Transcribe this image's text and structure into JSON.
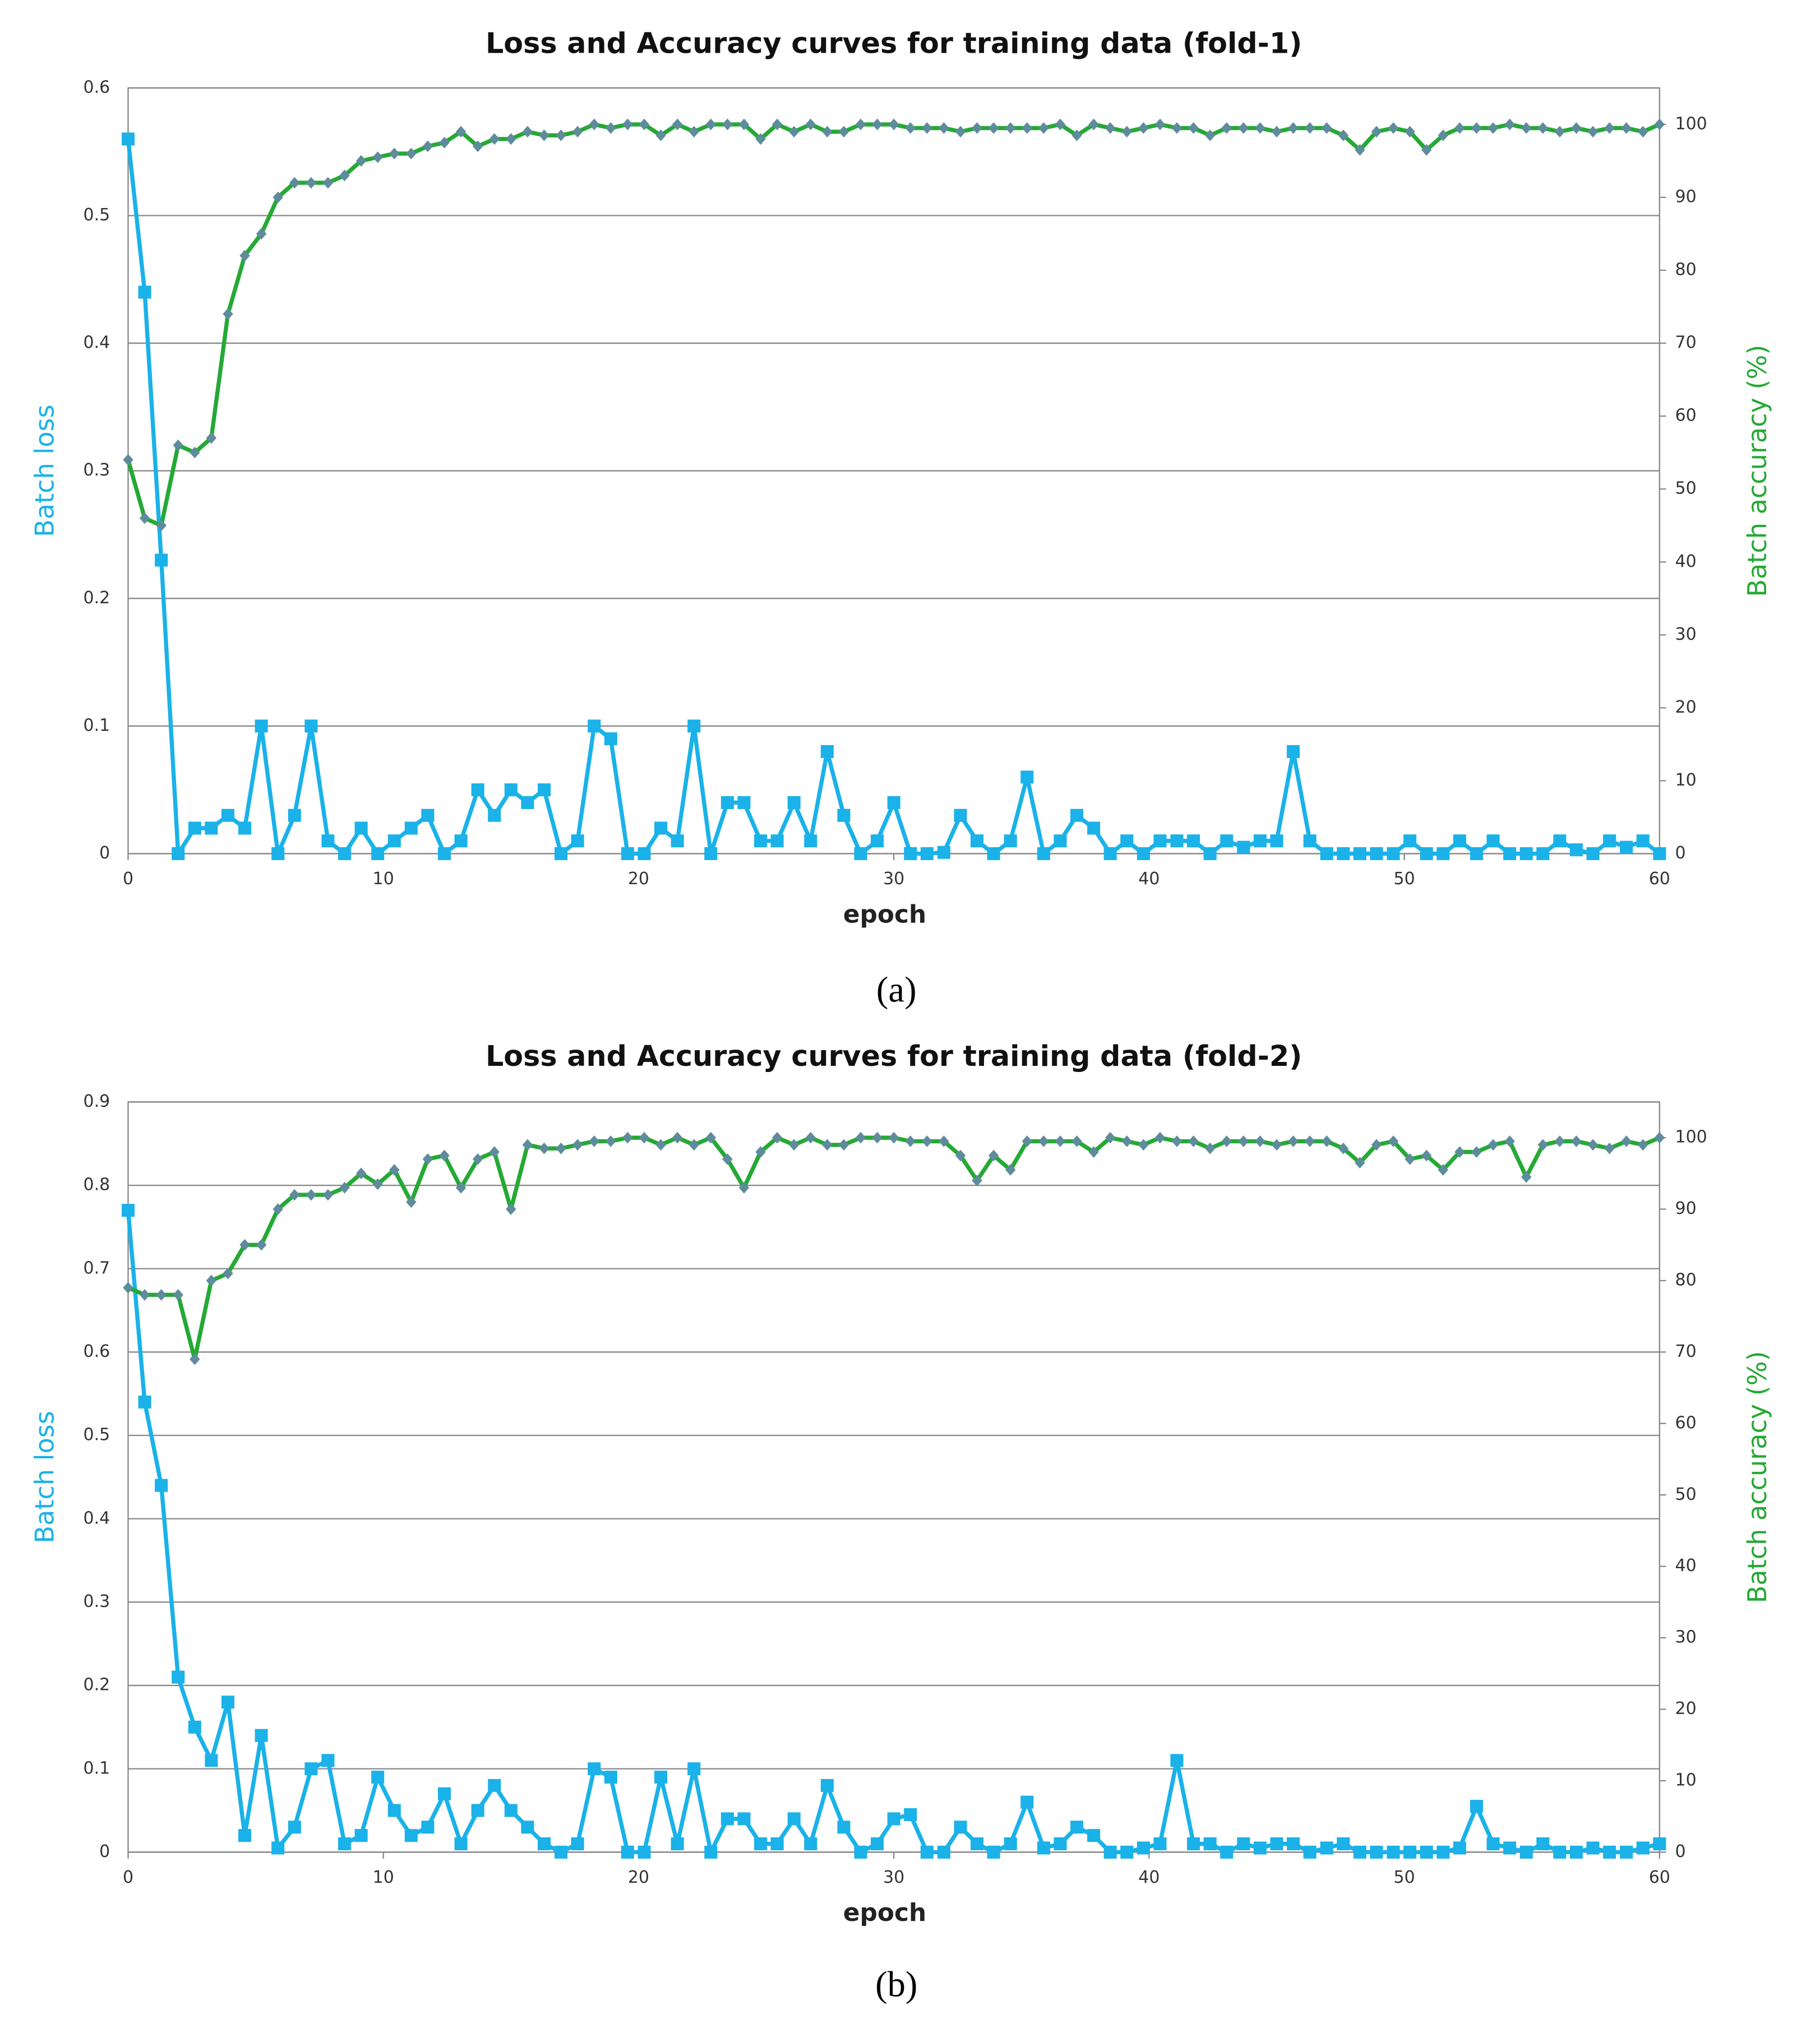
{
  "chart_data": [
    {
      "type": "line",
      "title": "Loss and Accuracy curves for training data (fold-1)",
      "caption": "(a)",
      "x_label": "epoch",
      "y_label": "Batch loss",
      "y2_label": "Batch accuracy (%)",
      "xlim": [
        0,
        60
      ],
      "xticks": [
        0,
        10,
        20,
        30,
        40,
        50,
        60
      ],
      "ylim": [
        0,
        0.6
      ],
      "yticks": [
        0,
        0.1,
        0.2,
        0.3,
        0.4,
        0.5,
        0.6
      ],
      "y2lim": [
        0,
        105
      ],
      "y2ticks": [
        0,
        10,
        20,
        30,
        40,
        50,
        60,
        70,
        80,
        90,
        100
      ],
      "grid": true,
      "x": [
        0,
        0.65,
        1.3,
        1.96,
        2.61,
        3.26,
        3.91,
        4.57,
        5.22,
        5.87,
        6.52,
        7.17,
        7.83,
        8.48,
        9.13,
        9.78,
        10.43,
        11.09,
        11.74,
        12.39,
        13.04,
        13.7,
        14.35,
        15,
        15.65,
        16.3,
        16.96,
        17.61,
        18.26,
        18.91,
        19.57,
        20.22,
        20.87,
        21.52,
        22.17,
        22.83,
        23.48,
        24.13,
        24.78,
        25.43,
        26.09,
        26.74,
        27.39,
        28.04,
        28.7,
        29.35,
        30,
        30.65,
        31.3,
        31.96,
        32.61,
        33.26,
        33.91,
        34.57,
        35.22,
        35.87,
        36.52,
        37.17,
        37.83,
        38.48,
        39.13,
        39.78,
        40.43,
        41.09,
        41.74,
        42.39,
        43.04,
        43.7,
        44.35,
        45,
        45.65,
        46.3,
        46.96,
        47.61,
        48.26,
        48.91,
        49.57,
        50.22,
        50.87,
        51.52,
        52.17,
        52.83,
        53.48,
        54.13,
        54.78,
        55.43,
        56.09,
        56.74,
        57.39,
        58.04,
        58.7,
        59.35,
        60
      ],
      "series": [
        {
          "axis": "y",
          "marker": "square",
          "color": "#1ab2e8",
          "values": [
            0.56,
            0.44,
            0.23,
            0,
            0.02,
            0.02,
            0.03,
            0.02,
            0.1,
            0,
            0.03,
            0.1,
            0.01,
            0,
            0.02,
            0,
            0.01,
            0.02,
            0.03,
            0,
            0.01,
            0.05,
            0.03,
            0.05,
            0.04,
            0.05,
            0,
            0.01,
            0.1,
            0.09,
            0,
            0,
            0.02,
            0.01,
            0.1,
            0,
            0.04,
            0.04,
            0.01,
            0.01,
            0.04,
            0.01,
            0.08,
            0.03,
            0,
            0.01,
            0.04,
            0,
            0,
            0.001,
            0.03,
            0.01,
            0,
            0.01,
            0.06,
            0,
            0.01,
            0.03,
            0.02,
            0,
            0.01,
            0,
            0.01,
            0.01,
            0.01,
            0,
            0.01,
            0.005,
            0.01,
            0.01,
            0.08,
            0.01,
            0,
            0,
            0,
            0,
            0,
            0.01,
            0,
            0,
            0.01,
            0,
            0.01,
            0,
            0,
            0,
            0.01,
            0.003,
            0,
            0.01,
            0.005,
            0.01,
            0
          ]
        },
        {
          "axis": "y2",
          "marker": "diamond",
          "color": "#25a935",
          "marker_color": "#5f8c9c",
          "values": [
            54,
            46,
            45,
            56,
            55,
            57,
            74,
            82,
            85,
            90,
            92,
            92,
            92,
            93,
            95,
            95.5,
            96,
            96,
            97,
            97.5,
            99,
            97,
            98,
            98,
            99,
            98.5,
            98.5,
            99,
            100,
            99.5,
            100,
            100,
            98.5,
            100,
            99,
            100,
            100,
            100,
            98,
            100,
            99,
            100,
            99,
            99,
            100,
            100,
            100,
            99.5,
            99.5,
            99.5,
            99,
            99.5,
            99.5,
            99.5,
            99.5,
            99.5,
            100,
            98.5,
            100,
            99.5,
            99,
            99.5,
            100,
            99.5,
            99.5,
            98.5,
            99.5,
            99.5,
            99.5,
            99,
            99.5,
            99.5,
            99.5,
            98.5,
            96.5,
            99,
            99.5,
            99,
            96.5,
            98.5,
            99.5,
            99.5,
            99.5,
            100,
            99.5,
            99.5,
            99,
            99.5,
            99,
            99.5,
            99.5,
            99,
            100
          ]
        }
      ]
    },
    {
      "type": "line",
      "title": "Loss and Accuracy curves for training data (fold-2)",
      "caption": "(b)",
      "x_label": "epoch",
      "y_label": "Batch loss",
      "y2_label": "Batch accuracy (%)",
      "xlim": [
        0,
        60
      ],
      "xticks": [
        0,
        10,
        20,
        30,
        40,
        50,
        60
      ],
      "ylim": [
        0,
        0.9
      ],
      "yticks": [
        0,
        0.1,
        0.2,
        0.3,
        0.4,
        0.5,
        0.6,
        0.7,
        0.8,
        0.9
      ],
      "y2lim": [
        0,
        105
      ],
      "y2ticks": [
        0,
        10,
        20,
        30,
        40,
        50,
        60,
        70,
        80,
        90,
        100
      ],
      "grid": true,
      "x": [
        0,
        0.65,
        1.3,
        1.96,
        2.61,
        3.26,
        3.91,
        4.57,
        5.22,
        5.87,
        6.52,
        7.17,
        7.83,
        8.48,
        9.13,
        9.78,
        10.43,
        11.09,
        11.74,
        12.39,
        13.04,
        13.7,
        14.35,
        15,
        15.65,
        16.3,
        16.96,
        17.61,
        18.26,
        18.91,
        19.57,
        20.22,
        20.87,
        21.52,
        22.17,
        22.83,
        23.48,
        24.13,
        24.78,
        25.43,
        26.09,
        26.74,
        27.39,
        28.04,
        28.7,
        29.35,
        30,
        30.65,
        31.3,
        31.96,
        32.61,
        33.26,
        33.91,
        34.57,
        35.22,
        35.87,
        36.52,
        37.17,
        37.83,
        38.48,
        39.13,
        39.78,
        40.43,
        41.09,
        41.74,
        42.39,
        43.04,
        43.7,
        44.35,
        45,
        45.65,
        46.3,
        46.96,
        47.61,
        48.26,
        48.91,
        49.57,
        50.22,
        50.87,
        51.52,
        52.17,
        52.83,
        53.48,
        54.13,
        54.78,
        55.43,
        56.09,
        56.74,
        57.39,
        58.04,
        58.7,
        59.35,
        60
      ],
      "series": [
        {
          "axis": "y",
          "marker": "square",
          "color": "#1ab2e8",
          "values": [
            0.77,
            0.54,
            0.44,
            0.21,
            0.15,
            0.11,
            0.18,
            0.02,
            0.14,
            0.005,
            0.03,
            0.1,
            0.11,
            0.01,
            0.02,
            0.09,
            0.05,
            0.02,
            0.03,
            0.07,
            0.01,
            0.05,
            0.08,
            0.05,
            0.03,
            0.01,
            0,
            0.01,
            0.1,
            0.09,
            0,
            0,
            0.09,
            0.01,
            0.1,
            0,
            0.04,
            0.04,
            0.01,
            0.01,
            0.04,
            0.01,
            0.08,
            0.03,
            0,
            0.01,
            0.04,
            0.045,
            0,
            0,
            0.03,
            0.01,
            0,
            0.01,
            0.06,
            0.005,
            0.01,
            0.03,
            0.02,
            0,
            0,
            0.005,
            0.01,
            0.11,
            0.01,
            0.01,
            0,
            0.01,
            0.005,
            0.01,
            0.01,
            0,
            0.005,
            0.01,
            0,
            0,
            0,
            0,
            0,
            0,
            0.005,
            0.055,
            0.01,
            0.005,
            0,
            0.01,
            0,
            0,
            0.005,
            0,
            0,
            0.005,
            0.01
          ]
        },
        {
          "axis": "y2",
          "marker": "diamond",
          "color": "#25a935",
          "marker_color": "#5f8c9c",
          "values": [
            79,
            78,
            78,
            78,
            69,
            80,
            81,
            85,
            85,
            90,
            92,
            92,
            92,
            93,
            95,
            93.5,
            95.5,
            91,
            97,
            97.5,
            93,
            97,
            98,
            90,
            99,
            98.5,
            98.5,
            99,
            99.5,
            99.5,
            100,
            100,
            99,
            100,
            99,
            100,
            97,
            93,
            98,
            100,
            99,
            100,
            99,
            99,
            100,
            100,
            100,
            99.5,
            99.5,
            99.5,
            97.5,
            94,
            97.5,
            95.5,
            99.5,
            99.5,
            99.5,
            99.5,
            98,
            100,
            99.5,
            99,
            100,
            99.5,
            99.5,
            98.5,
            99.5,
            99.5,
            99.5,
            99,
            99.5,
            99.5,
            99.5,
            98.5,
            96.5,
            99,
            99.5,
            97,
            97.5,
            95.5,
            98,
            98,
            99,
            99.5,
            94.5,
            99,
            99.5,
            99.5,
            99,
            98.5,
            99.5,
            99,
            100
          ]
        }
      ]
    }
  ]
}
